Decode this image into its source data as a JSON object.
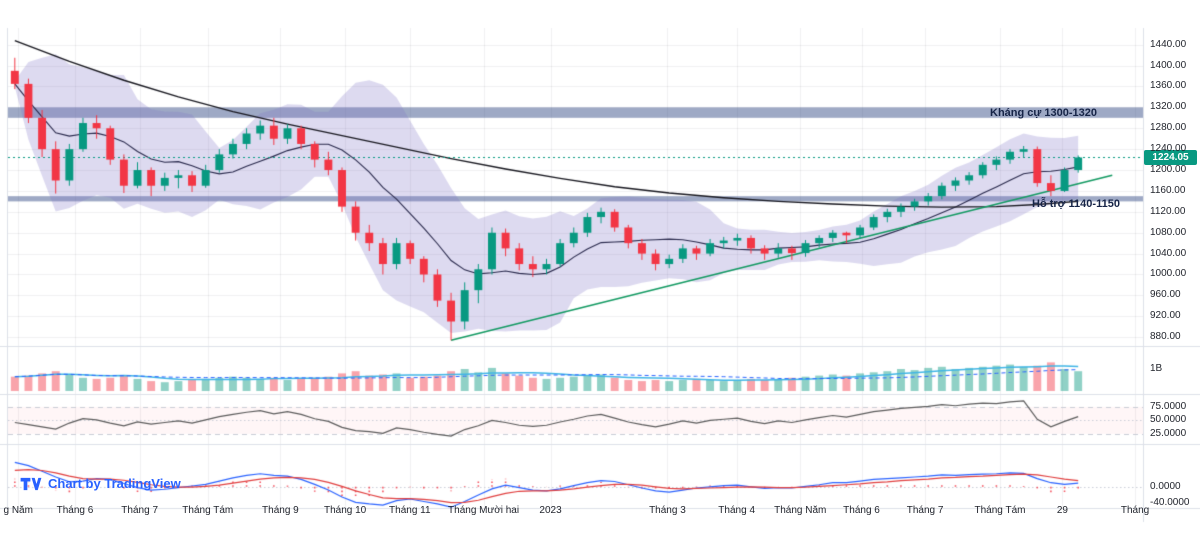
{
  "meta": {
    "attribution": "Chart by TradingView"
  },
  "colors": {
    "up": "#089981",
    "down": "#f23645",
    "vol_up": "rgba(8,153,129,0.45)",
    "vol_down": "rgba(242,54,69,0.45)",
    "zone": "rgba(79,98,150,0.55)",
    "bb_fill": "rgba(131,119,200,0.27)",
    "bb_basis": "#27274a",
    "long_ma": "#16161e",
    "trend": "#119961",
    "price_line": "#089981",
    "badge_bg": "#089981",
    "vol_ma": "#3fb5e5",
    "vol_ma2": "#2962ff",
    "rsi": "#5a5a5a",
    "rsi_fill": "rgba(247,82,95,0.05)",
    "level_line": "#c9ccd6",
    "macd": "#2962ff",
    "signal": "#e03e3e",
    "hist": "rgba(242,54,69,0.85)",
    "separator": "#dde0e8",
    "grid": "rgba(42,46,57,0.07)",
    "attr_blue": "#2962ff",
    "zone_text": "#162447"
  },
  "annotations": {
    "resistance": {
      "label": "Kháng cự 1300-1320",
      "price_from": 1300,
      "price_to": 1320
    },
    "support": {
      "label": "Hỗ trợ 1140-1150",
      "price_from": 1140,
      "price_to": 1150
    },
    "last_price": {
      "value": "1224.05",
      "price": 1224.05
    }
  },
  "axes": {
    "price_ticks": [
      "1440.00",
      "1400.00",
      "1360.00",
      "1320.00",
      "1280.00",
      "1240.00",
      "1200.00",
      "1160.00",
      "1120.00",
      "1080.00",
      "1040.00",
      "1000.00",
      "960.00",
      "920.00",
      "880.00"
    ],
    "volume_ticks": [
      "1B"
    ],
    "rsi_ticks": [
      "75.0000",
      "50.0000",
      "25.0000"
    ],
    "macd_ticks": [
      "0.0000",
      "-40.0000"
    ],
    "time_ticks": [
      {
        "label": "g Năm",
        "f": 0.009
      },
      {
        "label": "Tháng 6",
        "f": 0.059
      },
      {
        "label": "Tháng 7",
        "f": 0.116
      },
      {
        "label": "Tháng Tám",
        "f": 0.176
      },
      {
        "label": "Tháng 9",
        "f": 0.24
      },
      {
        "label": "Tháng 10",
        "f": 0.297
      },
      {
        "label": "Tháng 11",
        "f": 0.354
      },
      {
        "label": "Tháng Mười hai",
        "f": 0.419
      },
      {
        "label": "2023",
        "f": 0.478
      },
      {
        "label": "Tháng 3",
        "f": 0.581
      },
      {
        "label": "Tháng 4",
        "f": 0.642
      },
      {
        "label": "Tháng Năm",
        "f": 0.698
      },
      {
        "label": "Tháng 6",
        "f": 0.752
      },
      {
        "label": "Tháng 7",
        "f": 0.808
      },
      {
        "label": "Tháng Tám",
        "f": 0.874
      },
      {
        "label": "29",
        "f": 0.929
      },
      {
        "label": "Tháng",
        "f": 0.993
      }
    ]
  },
  "chart_data": {
    "type": "candlestick",
    "price_range": [
      865,
      1472
    ],
    "rsi_range": [
      10,
      95
    ],
    "macd_range": [
      -52,
      100
    ],
    "rsi_levels": [
      75,
      50,
      25
    ],
    "macd_levels": [
      0,
      -40
    ],
    "candles": [
      [
        1390,
        1415,
        1355,
        1365
      ],
      [
        1365,
        1375,
        1290,
        1300
      ],
      [
        1300,
        1315,
        1225,
        1240
      ],
      [
        1240,
        1255,
        1155,
        1180
      ],
      [
        1180,
        1250,
        1170,
        1240
      ],
      [
        1240,
        1300,
        1235,
        1290
      ],
      [
        1290,
        1305,
        1260,
        1280
      ],
      [
        1280,
        1285,
        1210,
        1220
      ],
      [
        1220,
        1230,
        1156,
        1170
      ],
      [
        1170,
        1215,
        1165,
        1200
      ],
      [
        1200,
        1205,
        1150,
        1170
      ],
      [
        1170,
        1195,
        1160,
        1185
      ],
      [
        1185,
        1200,
        1165,
        1190
      ],
      [
        1190,
        1198,
        1158,
        1170
      ],
      [
        1170,
        1210,
        1166,
        1200
      ],
      [
        1200,
        1240,
        1195,
        1230
      ],
      [
        1230,
        1260,
        1222,
        1250
      ],
      [
        1250,
        1280,
        1240,
        1270
      ],
      [
        1270,
        1295,
        1258,
        1285
      ],
      [
        1285,
        1300,
        1248,
        1260
      ],
      [
        1260,
        1288,
        1250,
        1280
      ],
      [
        1280,
        1285,
        1240,
        1250
      ],
      [
        1250,
        1255,
        1205,
        1220
      ],
      [
        1220,
        1235,
        1190,
        1200
      ],
      [
        1200,
        1205,
        1120,
        1130
      ],
      [
        1130,
        1140,
        1065,
        1080
      ],
      [
        1080,
        1095,
        1045,
        1060
      ],
      [
        1060,
        1070,
        1000,
        1020
      ],
      [
        1020,
        1070,
        1010,
        1060
      ],
      [
        1060,
        1065,
        1020,
        1030
      ],
      [
        1030,
        1035,
        985,
        1000
      ],
      [
        1000,
        1010,
        938,
        950
      ],
      [
        950,
        965,
        874,
        910
      ],
      [
        910,
        985,
        895,
        970
      ],
      [
        970,
        1020,
        945,
        1010
      ],
      [
        1010,
        1090,
        1000,
        1080
      ],
      [
        1080,
        1088,
        1035,
        1050
      ],
      [
        1050,
        1060,
        1008,
        1020
      ],
      [
        1020,
        1035,
        995,
        1010
      ],
      [
        1010,
        1030,
        1000,
        1020
      ],
      [
        1020,
        1068,
        1015,
        1060
      ],
      [
        1060,
        1090,
        1052,
        1080
      ],
      [
        1080,
        1118,
        1072,
        1110
      ],
      [
        1110,
        1128,
        1098,
        1120
      ],
      [
        1120,
        1125,
        1082,
        1090
      ],
      [
        1090,
        1095,
        1050,
        1060
      ],
      [
        1060,
        1068,
        1028,
        1040
      ],
      [
        1040,
        1048,
        1008,
        1020
      ],
      [
        1020,
        1038,
        1012,
        1030
      ],
      [
        1030,
        1058,
        1022,
        1050
      ],
      [
        1050,
        1055,
        1028,
        1040
      ],
      [
        1040,
        1068,
        1035,
        1060
      ],
      [
        1060,
        1072,
        1050,
        1065
      ],
      [
        1065,
        1078,
        1055,
        1070
      ],
      [
        1070,
        1075,
        1040,
        1050
      ],
      [
        1050,
        1056,
        1028,
        1040
      ],
      [
        1040,
        1060,
        1032,
        1050
      ],
      [
        1050,
        1055,
        1028,
        1041
      ],
      [
        1041,
        1066,
        1034,
        1060
      ],
      [
        1060,
        1075,
        1052,
        1070
      ],
      [
        1070,
        1085,
        1062,
        1080
      ],
      [
        1080,
        1082,
        1060,
        1075
      ],
      [
        1075,
        1095,
        1068,
        1090
      ],
      [
        1090,
        1115,
        1085,
        1110
      ],
      [
        1110,
        1126,
        1100,
        1120
      ],
      [
        1120,
        1136,
        1110,
        1130
      ],
      [
        1130,
        1145,
        1122,
        1140
      ],
      [
        1140,
        1156,
        1132,
        1150
      ],
      [
        1150,
        1176,
        1144,
        1170
      ],
      [
        1170,
        1186,
        1160,
        1180
      ],
      [
        1180,
        1196,
        1172,
        1190
      ],
      [
        1190,
        1215,
        1184,
        1210
      ],
      [
        1210,
        1226,
        1200,
        1220
      ],
      [
        1220,
        1240,
        1212,
        1235
      ],
      [
        1235,
        1246,
        1225,
        1240
      ],
      [
        1240,
        1245,
        1168,
        1175
      ],
      [
        1175,
        1190,
        1150,
        1160
      ],
      [
        1160,
        1205,
        1158,
        1200
      ],
      [
        1200,
        1228,
        1195,
        1224.05
      ]
    ],
    "volumes": [
      0.65,
      0.7,
      0.8,
      0.9,
      0.75,
      0.6,
      0.55,
      0.6,
      0.7,
      0.55,
      0.45,
      0.4,
      0.45,
      0.5,
      0.55,
      0.6,
      0.65,
      0.6,
      0.55,
      0.6,
      0.5,
      0.55,
      0.6,
      0.65,
      0.8,
      0.9,
      0.7,
      0.75,
      0.8,
      0.6,
      0.65,
      0.7,
      0.9,
      1.0,
      0.85,
      1.05,
      0.8,
      0.7,
      0.6,
      0.55,
      0.6,
      0.65,
      0.7,
      0.75,
      0.6,
      0.5,
      0.45,
      0.5,
      0.45,
      0.5,
      0.55,
      0.5,
      0.45,
      0.5,
      0.55,
      0.5,
      0.55,
      0.6,
      0.65,
      0.7,
      0.75,
      0.7,
      0.8,
      0.85,
      0.9,
      1.0,
      0.95,
      1.05,
      1.1,
      1.0,
      1.05,
      1.1,
      1.15,
      1.2,
      1.1,
      1.15,
      1.3,
      1.0,
      0.9
    ],
    "rsi": [
      46,
      42,
      38,
      34,
      45,
      53,
      51,
      45,
      40,
      47,
      43,
      46,
      49,
      45,
      51,
      57,
      61,
      65,
      68,
      62,
      66,
      61,
      53,
      48,
      37,
      31,
      29,
      26,
      36,
      33,
      28,
      24,
      21,
      33,
      40,
      50,
      46,
      41,
      39,
      41,
      47,
      52,
      58,
      61,
      54,
      47,
      42,
      38,
      43,
      49,
      45,
      50,
      52,
      54,
      48,
      44,
      49,
      46,
      51,
      55,
      59,
      56,
      61,
      66,
      69,
      72,
      74,
      76,
      79,
      77,
      80,
      82,
      81,
      84,
      86,
      52,
      38,
      48,
      57
    ],
    "macd_line": [
      60,
      52,
      38,
      24,
      12,
      14,
      20,
      18,
      8,
      -2,
      -8,
      -6,
      -2,
      2,
      6,
      14,
      22,
      28,
      32,
      28,
      26,
      18,
      6,
      -8,
      -25,
      -38,
      -42,
      -45,
      -34,
      -30,
      -36,
      -42,
      -50,
      -36,
      -20,
      -5,
      4,
      -2,
      -8,
      -10,
      -5,
      3,
      10,
      15,
      13,
      5,
      -3,
      -10,
      -13,
      -8,
      -3,
      0,
      3,
      4,
      0,
      -4,
      -2,
      -3,
      1,
      5,
      10,
      10,
      14,
      18,
      20,
      22,
      24,
      26,
      29,
      28,
      30,
      31,
      32,
      34,
      33,
      20,
      10,
      6,
      9
    ],
    "signal_line": [
      40,
      42,
      40,
      34,
      26,
      20,
      19,
      19,
      16,
      11,
      5,
      1,
      -1,
      -1,
      1,
      4,
      9,
      14,
      19,
      22,
      23,
      22,
      18,
      11,
      1,
      -10,
      -19,
      -27,
      -29,
      -29,
      -31,
      -34,
      -39,
      -38,
      -33,
      -24,
      -16,
      -11,
      -10,
      -10,
      -8,
      -5,
      -1,
      3,
      6,
      6,
      4,
      0,
      -4,
      -5,
      -4,
      -3,
      -2,
      -1,
      0,
      -1,
      -2,
      -2,
      -1,
      1,
      3,
      5,
      7,
      10,
      12,
      15,
      17,
      19,
      22,
      23,
      25,
      26,
      28,
      30,
      31,
      29,
      24,
      19,
      15
    ],
    "long_ma_points": [
      [
        0,
        1448
      ],
      [
        4,
        1408
      ],
      [
        8,
        1372
      ],
      [
        12,
        1340
      ],
      [
        16,
        1312
      ],
      [
        20,
        1288
      ],
      [
        24,
        1266
      ],
      [
        28,
        1244
      ],
      [
        32,
        1222
      ],
      [
        36,
        1202
      ],
      [
        40,
        1184
      ],
      [
        44,
        1168
      ],
      [
        48,
        1156
      ],
      [
        52,
        1147
      ],
      [
        56,
        1140
      ],
      [
        60,
        1135
      ],
      [
        64,
        1131
      ],
      [
        68,
        1129
      ],
      [
        72,
        1130
      ],
      [
        75,
        1134
      ],
      [
        78,
        1140
      ]
    ],
    "trendline": {
      "from_index": 32,
      "from_price": 874,
      "to_index": 80.5,
      "to_price": 1190
    }
  }
}
